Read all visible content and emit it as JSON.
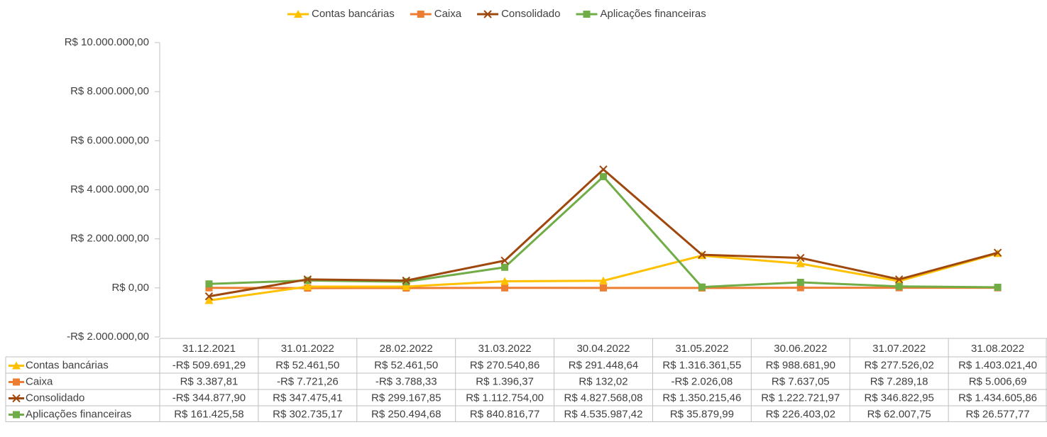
{
  "chart_data": {
    "type": "line",
    "categories": [
      "31.12.2021",
      "31.01.2022",
      "28.02.2022",
      "31.03.2022",
      "30.04.2022",
      "31.05.2022",
      "30.06.2022",
      "31.07.2022",
      "31.08.2022"
    ],
    "series": [
      {
        "name": "Contas bancárias",
        "color": "#ffc000",
        "marker": "triangle",
        "values": [
          -509691.29,
          52461.5,
          52461.5,
          270540.86,
          291448.64,
          1316361.55,
          988681.9,
          277526.02,
          1403021.4
        ],
        "value_labels": [
          "-R$ 509.691,29",
          "R$ 52.461,50",
          "R$ 52.461,50",
          "R$ 270.540,86",
          "R$ 291.448,64",
          "R$ 1.316.361,55",
          "R$ 988.681,90",
          "R$ 277.526,02",
          "R$ 1.403.021,40"
        ]
      },
      {
        "name": "Caixa",
        "color": "#ed7d31",
        "marker": "square",
        "values": [
          3387.81,
          -7721.26,
          -3788.33,
          1396.37,
          132.02,
          -2026.08,
          7637.05,
          7289.18,
          5006.69
        ],
        "value_labels": [
          "R$ 3.387,81",
          "-R$ 7.721,26",
          "-R$ 3.788,33",
          "R$ 1.396,37",
          "R$ 132,02",
          "-R$ 2.026,08",
          "R$ 7.637,05",
          "R$ 7.289,18",
          "R$ 5.006,69"
        ]
      },
      {
        "name": "Consolidado",
        "color": "#9e480e",
        "marker": "x",
        "values": [
          -344877.9,
          347475.41,
          299167.85,
          1112754.0,
          4827568.08,
          1350215.46,
          1222721.97,
          346822.95,
          1434605.86
        ],
        "value_labels": [
          "-R$ 344.877,90",
          "R$ 347.475,41",
          "R$ 299.167,85",
          "R$ 1.112.754,00",
          "R$ 4.827.568,08",
          "R$ 1.350.215,46",
          "R$ 1.222.721,97",
          "R$ 346.822,95",
          "R$ 1.434.605,86"
        ]
      },
      {
        "name": "Aplicações financeiras",
        "color": "#70ad47",
        "marker": "square",
        "values": [
          161425.58,
          302735.17,
          250494.68,
          840816.77,
          4535987.42,
          35879.99,
          226403.02,
          62007.75,
          26577.77
        ],
        "value_labels": [
          "R$ 161.425,58",
          "R$ 302.735,17",
          "R$ 250.494,68",
          "R$ 840.816,77",
          "R$ 4.535.987,42",
          "R$ 35.879,99",
          "R$ 226.403,02",
          "R$ 62.007,75",
          "R$ 26.577,77"
        ]
      }
    ],
    "ylim": [
      -2000000,
      10000000
    ],
    "yticks": [
      {
        "value": -2000000,
        "label": "-R$ 2.000.000,00"
      },
      {
        "value": 0,
        "label": "R$ 0,00"
      },
      {
        "value": 2000000,
        "label": "R$ 2.000.000,00"
      },
      {
        "value": 4000000,
        "label": "R$ 4.000.000,00"
      },
      {
        "value": 6000000,
        "label": "R$ 6.000.000,00"
      },
      {
        "value": 8000000,
        "label": "R$ 8.000.000,00"
      },
      {
        "value": 10000000,
        "label": "R$ 10.000.000,00"
      }
    ],
    "legend": "top"
  }
}
